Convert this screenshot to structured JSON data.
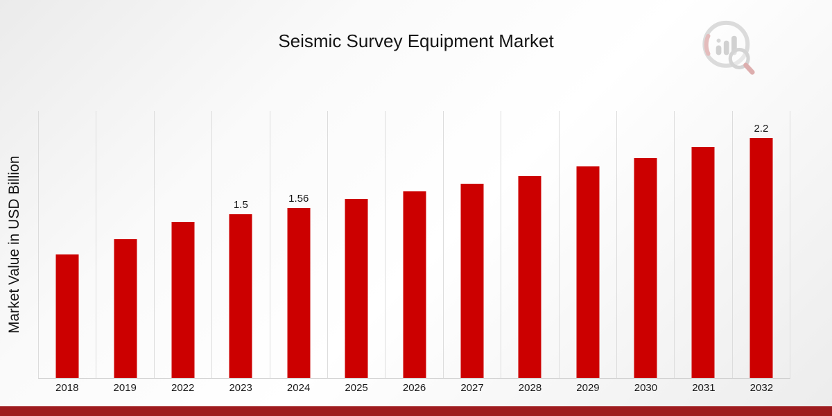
{
  "title": "Seismic Survey Equipment Market",
  "y_axis_label": "Market Value in USD Billion",
  "logo": {
    "name": "market-research-logo"
  },
  "colors": {
    "bar": "#CC0000",
    "bottom_strip": "#9E1B1E",
    "gridline": "#DCDCDC"
  },
  "chart_data": {
    "type": "bar",
    "title": "Seismic Survey Equipment Market",
    "xlabel": "",
    "ylabel": "Market Value in USD Billion",
    "categories": [
      "2018",
      "2019",
      "2022",
      "2023",
      "2024",
      "2025",
      "2026",
      "2027",
      "2028",
      "2029",
      "2030",
      "2031",
      "2032"
    ],
    "values": [
      1.13,
      1.27,
      1.43,
      1.5,
      1.56,
      1.64,
      1.71,
      1.78,
      1.85,
      1.94,
      2.02,
      2.12,
      2.2
    ],
    "data_labels": {
      "2023": "1.5",
      "2024": "1.56",
      "2032": "2.2"
    },
    "ylim": [
      0,
      2.45
    ],
    "grid": "vertical",
    "legend": "none",
    "bar_color": "#CC0000"
  }
}
